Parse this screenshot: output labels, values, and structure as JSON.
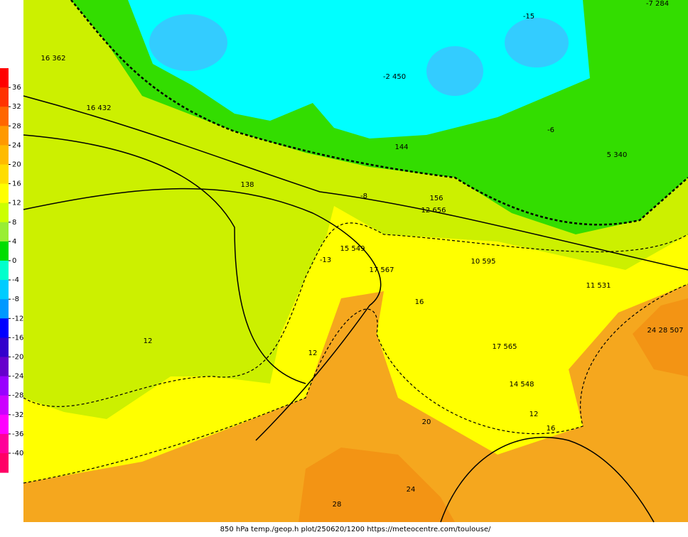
{
  "legend": {
    "labels": [
      36,
      32,
      28,
      24,
      20,
      16,
      12,
      8,
      4,
      0,
      -4,
      -8,
      -12,
      -16,
      -20,
      -24,
      -28,
      -32,
      -36,
      -40
    ],
    "colors": [
      "#ff0000",
      "#ff3300",
      "#ff6600",
      "#ff9900",
      "#ffbb00",
      "#ffdd00",
      "#ffff00",
      "#ccff00",
      "#99ee33",
      "#00dd00",
      "#00ffcc",
      "#00ccff",
      "#0099ff",
      "#0000ff",
      "#3300cc",
      "#6600cc",
      "#9900ff",
      "#cc00ff",
      "#ff00ff",
      "#ff0099",
      "#ff0066"
    ]
  },
  "map": {
    "labels": [
      "12",
      "12",
      "16",
      "20",
      "24",
      "28",
      "-8",
      "-2 450",
      "138",
      "144",
      "156",
      "12 656",
      "15 549",
      "17 567",
      "-13",
      "14 548",
      "16",
      "12",
      "24 28 507",
      "16 432",
      "16 362",
      "-15",
      "5 340",
      "11 531",
      "-7 284",
      "-6",
      "10 595",
      "17 565"
    ]
  },
  "caption": "850 hPa temp./geop.h plot/250620/1200 https://meteocentre.com/toulouse/"
}
